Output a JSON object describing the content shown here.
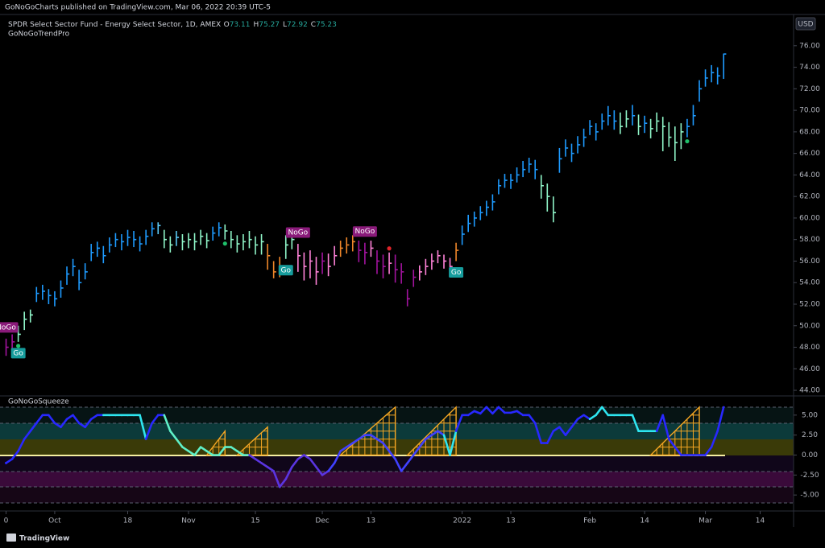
{
  "header": {
    "text": "GoNoGoCharts published on TradingView.com, Mar 06, 2022 20:39 UTC-5",
    "brand": "TradingView"
  },
  "chart_data": [
    {
      "type": "ohlc",
      "title": "SPDR Select Sector Fund - Energy Select Sector, 1D, AMEX",
      "indicator": "GoNoGoTrendPro",
      "currency": "USD",
      "ohlc_legend": [
        {
          "label": "O",
          "value": 73.11
        },
        {
          "label": "H",
          "value": 75.27
        },
        {
          "label": "L",
          "value": 72.92
        },
        {
          "label": "C",
          "value": 75.23
        }
      ],
      "xlim": [
        -1,
        129.5
      ],
      "xticks": [
        {
          "value": 0,
          "label": "0"
        },
        {
          "value": 8,
          "label": "Oct"
        },
        {
          "value": 20,
          "label": "18"
        },
        {
          "value": 30,
          "label": "Nov"
        },
        {
          "value": 41,
          "label": "15"
        },
        {
          "value": 52,
          "label": "Dec"
        },
        {
          "value": 60,
          "label": "13"
        },
        {
          "value": 75,
          "label": "2022"
        },
        {
          "value": 83,
          "label": "13"
        },
        {
          "value": 96,
          "label": "Feb"
        },
        {
          "value": 105,
          "label": "14"
        },
        {
          "value": 115,
          "label": "Mar"
        },
        {
          "value": 124,
          "label": "14"
        }
      ],
      "ylim": [
        43.63,
        78.9
      ],
      "yticks": [
        {
          "value": 44,
          "label": "44.00"
        },
        {
          "value": 46,
          "label": "46.00"
        },
        {
          "value": 48,
          "label": "48.00"
        },
        {
          "value": 50,
          "label": "50.00"
        },
        {
          "value": 52,
          "label": "52.00"
        },
        {
          "value": 54,
          "label": "54.00"
        },
        {
          "value": 56,
          "label": "56.00"
        },
        {
          "value": 58,
          "label": "58.00"
        },
        {
          "value": 60,
          "label": "60.00"
        },
        {
          "value": 62,
          "label": "62.00"
        },
        {
          "value": 64,
          "label": "64.00"
        },
        {
          "value": 66,
          "label": "66.00"
        },
        {
          "value": 68,
          "label": "68.00"
        },
        {
          "value": 70,
          "label": "70.00"
        },
        {
          "value": 72,
          "label": "72.00"
        },
        {
          "value": 74,
          "label": "74.00"
        },
        {
          "value": 76,
          "label": "76.00"
        }
      ],
      "close": [
        48.0,
        48.5,
        49.2,
        50.6,
        51.0,
        53.0,
        53.2,
        52.8,
        52.5,
        53.5,
        54.8,
        55.5,
        54.0,
        55.0,
        56.8,
        57.2,
        56.5,
        57.5,
        58.0,
        57.8,
        58.2,
        58.0,
        57.6,
        58.3,
        59.0,
        59.3,
        58.0,
        57.5,
        58.2,
        57.8,
        58.0,
        57.8,
        58.3,
        57.9,
        58.6,
        59.1,
        58.8,
        58.0,
        57.6,
        57.8,
        58.0,
        57.5,
        57.8,
        56.5,
        55.0,
        55.3,
        57.5,
        58.0,
        56.5,
        55.5,
        56.0,
        55.0,
        56.0,
        55.5,
        56.5,
        57.2,
        57.5,
        57.8,
        57.0,
        56.8,
        57.2,
        56.0,
        55.5,
        55.8,
        55.2,
        55.0,
        52.5,
        54.5,
        55.0,
        55.5,
        56.0,
        56.5,
        56.0,
        55.5,
        57.0,
        58.5,
        59.5,
        60.0,
        60.5,
        61.0,
        61.5,
        63.0,
        63.5,
        63.5,
        64.0,
        64.5,
        65.0,
        64.5,
        63.0,
        62.0,
        60.5,
        65.5,
        66.5,
        66.0,
        66.8,
        67.5,
        68.5,
        68.0,
        69.0,
        69.5,
        69.0,
        68.5,
        69.2,
        69.5,
        68.5,
        68.8,
        68.3,
        69.0,
        68.5,
        67.5,
        67.0,
        68.0,
        68.5,
        69.5,
        72.0,
        73.0,
        73.5,
        73.2,
        75.23
      ],
      "high": [
        48.8,
        49.2,
        50.0,
        51.3,
        51.5,
        53.6,
        53.8,
        53.4,
        53.2,
        54.2,
        55.5,
        56.2,
        55.2,
        55.8,
        57.6,
        57.8,
        57.4,
        58.2,
        58.6,
        58.5,
        58.9,
        58.8,
        58.3,
        58.9,
        59.6,
        59.6,
        58.9,
        58.3,
        58.8,
        58.5,
        58.6,
        58.6,
        58.9,
        58.6,
        59.2,
        59.6,
        59.4,
        58.8,
        58.4,
        58.5,
        58.8,
        58.3,
        58.5,
        57.6,
        56.0,
        56.4,
        58.4,
        58.4,
        57.6,
        56.8,
        57.0,
        56.4,
        56.8,
        56.7,
        57.4,
        57.9,
        58.2,
        58.4,
        57.9,
        57.7,
        57.9,
        57.0,
        56.6,
        56.8,
        56.6,
        55.8,
        53.4,
        55.2,
        55.6,
        56.2,
        56.7,
        57.0,
        56.6,
        56.3,
        57.7,
        59.3,
        60.3,
        60.6,
        61.1,
        61.6,
        62.2,
        63.6,
        64.1,
        64.1,
        64.7,
        65.3,
        65.6,
        65.4,
        64.0,
        63.2,
        62.0,
        66.5,
        67.3,
        66.9,
        67.6,
        68.3,
        69.1,
        68.8,
        69.7,
        70.4,
        70.0,
        69.8,
        70.0,
        70.5,
        69.6,
        69.5,
        69.2,
        69.8,
        69.4,
        68.9,
        68.5,
        68.8,
        69.2,
        70.5,
        72.8,
        73.8,
        74.2,
        74.0,
        75.27
      ],
      "low": [
        47.2,
        47.8,
        48.5,
        49.6,
        50.3,
        52.2,
        52.4,
        52.0,
        51.8,
        52.6,
        53.8,
        54.6,
        53.3,
        54.3,
        56.0,
        56.4,
        55.8,
        56.8,
        57.3,
        57.0,
        57.4,
        57.3,
        56.9,
        57.5,
        58.3,
        58.5,
        57.2,
        56.8,
        57.4,
        57.0,
        57.2,
        57.0,
        57.5,
        57.2,
        57.9,
        58.3,
        58.0,
        57.2,
        56.8,
        57.0,
        57.2,
        56.6,
        56.6,
        55.2,
        54.4,
        54.5,
        56.2,
        57.1,
        55.0,
        54.2,
        54.4,
        53.8,
        54.8,
        54.6,
        55.6,
        56.4,
        56.7,
        56.9,
        55.9,
        55.7,
        56.4,
        54.8,
        54.4,
        54.8,
        54.0,
        53.9,
        51.8,
        53.6,
        54.2,
        54.7,
        55.2,
        55.8,
        55.3,
        54.8,
        56.0,
        57.5,
        58.7,
        59.2,
        59.8,
        60.2,
        60.7,
        62.2,
        62.8,
        62.7,
        63.3,
        63.8,
        64.2,
        63.6,
        61.8,
        60.6,
        59.6,
        64.2,
        65.7,
        65.2,
        66.0,
        66.6,
        67.7,
        67.2,
        68.2,
        68.6,
        68.2,
        67.8,
        68.4,
        68.6,
        67.7,
        67.9,
        67.4,
        68.0,
        66.2,
        66.6,
        65.3,
        66.4,
        67.5,
        68.6,
        70.8,
        72.2,
        72.6,
        72.4,
        72.92
      ],
      "colors": [
        "#a3139f",
        "#a3139f",
        "#8ff5c8",
        "#8ff5c8",
        "#8ff5c8",
        "#1e9bff",
        "#1e9bff",
        "#1e9bff",
        "#1e9bff",
        "#1e9bff",
        "#1e9bff",
        "#1e9bff",
        "#1e9bff",
        "#1e9bff",
        "#1e9bff",
        "#1e9bff",
        "#1e9bff",
        "#1e9bff",
        "#1e9bff",
        "#1e9bff",
        "#1e9bff",
        "#1e9bff",
        "#1e9bff",
        "#1e9bff",
        "#1e9bff",
        "#5bc8f5",
        "#8ff5c8",
        "#8ff5c8",
        "#5bc8f5",
        "#8ff5c8",
        "#8ff5c8",
        "#8ff5c8",
        "#8ff5c8",
        "#8ff5c8",
        "#1e9bff",
        "#1e9bff",
        "#8ff5c8",
        "#8ff5c8",
        "#8ff5c8",
        "#8ff5c8",
        "#8ff5c8",
        "#8ff5c8",
        "#8ff5c8",
        "#f0872a",
        "#f0872a",
        "#f0872a",
        "#8ff5c8",
        "#8ff5c8",
        "#ff82d8",
        "#ff82d8",
        "#ff82d8",
        "#ff82d8",
        "#a3139f",
        "#ff82d8",
        "#ff82d8",
        "#f0872a",
        "#f0872a",
        "#f0872a",
        "#a3139f",
        "#a3139f",
        "#ff82d8",
        "#a3139f",
        "#a3139f",
        "#ff82d8",
        "#a3139f",
        "#a3139f",
        "#a3139f",
        "#a3139f",
        "#ff82d8",
        "#ff82d8",
        "#ff82d8",
        "#ff82d8",
        "#ff82d8",
        "#ff82d8",
        "#f0872a",
        "#1e9bff",
        "#1e9bff",
        "#1e9bff",
        "#1e9bff",
        "#1e9bff",
        "#1e9bff",
        "#1e9bff",
        "#1e9bff",
        "#1e9bff",
        "#1e9bff",
        "#1e9bff",
        "#1e9bff",
        "#1e9bff",
        "#8ff5c8",
        "#8ff5c8",
        "#8ff5c8",
        "#1e9bff",
        "#1e9bff",
        "#1e9bff",
        "#1e9bff",
        "#1e9bff",
        "#1e9bff",
        "#1e9bff",
        "#1e9bff",
        "#1e9bff",
        "#1e9bff",
        "#8ff5c8",
        "#8ff5c8",
        "#1e9bff",
        "#8ff5c8",
        "#1e9bff",
        "#8ff5c8",
        "#8ff5c8",
        "#8ff5c8",
        "#8ff5c8",
        "#8ff5c8",
        "#8ff5c8",
        "#1e9bff",
        "#1e9bff",
        "#1e9bff",
        "#1e9bff",
        "#1e9bff",
        "#1e9bff",
        "#1e9bff"
      ],
      "annotations": [
        {
          "text": "NoGo",
          "bar": 0,
          "side": "above",
          "color": "#8a1a7a"
        },
        {
          "text": "Go",
          "bar": 2,
          "side": "below",
          "color": "#169c9c"
        },
        {
          "text": "Go",
          "bar": 46,
          "side": "below",
          "color": "#169c9c"
        },
        {
          "text": "NoGo",
          "bar": 48,
          "side": "above",
          "color": "#8a1a7a"
        },
        {
          "text": "NoGo",
          "bar": 59,
          "side": "above",
          "color": "#8a1a7a"
        },
        {
          "text": "Go",
          "bar": 74,
          "side": "below",
          "color": "#169c9c"
        }
      ],
      "signals": [
        {
          "bar": 2,
          "side": "below",
          "color": "#1fbf6a"
        },
        {
          "bar": 36,
          "side": "below",
          "color": "#1fbf6a"
        },
        {
          "bar": 63,
          "side": "above",
          "color": "#e0242a"
        },
        {
          "bar": 112,
          "side": "below",
          "color": "#1fbf6a"
        }
      ]
    },
    {
      "type": "line",
      "title": "GoNoGoSqueeze",
      "ylim": [
        -7.0,
        7.1
      ],
      "yticks": [
        {
          "value": 5,
          "label": "5.00"
        },
        {
          "value": 2.5,
          "label": "2.50"
        },
        {
          "value": 0,
          "label": "0.00"
        },
        {
          "value": -2.5,
          "label": "-2.50"
        },
        {
          "value": -5,
          "label": "-5.00"
        }
      ],
      "values": [
        -1,
        -0.5,
        0.5,
        2,
        3,
        4,
        5,
        5,
        4,
        3.5,
        4.5,
        5,
        4,
        3.5,
        4.5,
        5,
        5,
        5,
        5,
        5,
        5,
        5,
        5,
        2,
        4,
        5,
        5,
        3,
        2,
        1,
        0.5,
        0,
        1,
        0.5,
        0,
        0,
        1,
        1,
        0.5,
        0,
        0,
        -0.5,
        -1,
        -1.5,
        -2,
        -4,
        -3,
        -1.5,
        -0.5,
        0,
        -0.5,
        -1.5,
        -2.5,
        -2,
        -1,
        0.5,
        1,
        1.5,
        2,
        2.5,
        2.5,
        2,
        1.5,
        0.5,
        -0.5,
        -2,
        -1,
        0,
        1,
        2,
        2.5,
        3,
        2.5,
        0,
        3,
        5,
        5,
        5.5,
        5.2,
        6,
        5.2,
        6,
        5.3,
        5.3,
        5.5,
        5,
        5,
        4,
        1.5,
        1.5,
        3,
        3.5,
        2.5,
        3.5,
        4.5,
        5,
        4.5,
        5,
        6,
        5,
        5,
        5,
        5,
        5,
        3,
        3,
        3,
        3,
        5,
        2,
        1,
        0,
        0,
        0,
        0,
        0,
        1,
        3,
        6
      ],
      "colors": [
        "#2828ff",
        "#2828ff",
        "#2828ff",
        "#2828ff",
        "#2828ff",
        "#2828ff",
        "#2828ff",
        "#2828ff",
        "#2828ff",
        "#2828ff",
        "#2828ff",
        "#2828ff",
        "#2828ff",
        "#2828ff",
        "#2828ff",
        "#2828ff",
        "#2828ff",
        "#2ee6f0",
        "#2ee6f0",
        "#2ee6f0",
        "#2ee6f0",
        "#2ee6f0",
        "#2ee6f0",
        "#2ee6f0",
        "#2828ff",
        "#2828ff",
        "#2828ff",
        "#5ff0c8",
        "#5ff0c8",
        "#5ff0c8",
        "#5ff0c8",
        "#5ff0c8",
        "#5ff0c8",
        "#5ff0c8",
        "#5ff0c8",
        "#5ff0c8",
        "#5ff0c8",
        "#5ff0c8",
        "#5ff0c8",
        "#5ff0c8",
        "#5ff0c8",
        "#5a35e0",
        "#5a35e0",
        "#5a35e0",
        "#5a35e0",
        "#5a35e0",
        "#5a35e0",
        "#5a35e0",
        "#5a35e0",
        "#5a35e0",
        "#5a35e0",
        "#5a35e0",
        "#5a35e0",
        "#5a35e0",
        "#4040ff",
        "#4040ff",
        "#4040ff",
        "#4040ff",
        "#4040ff",
        "#4040ff",
        "#4040ff",
        "#4040ff",
        "#4040ff",
        "#4040ff",
        "#4040ff",
        "#4040ff",
        "#4040ff",
        "#4040ff",
        "#4040ff",
        "#4040ff",
        "#4040ff",
        "#4040ff",
        "#4040ff",
        "#2ee6f0",
        "#2ee6f0",
        "#2828ff",
        "#2828ff",
        "#2828ff",
        "#2828ff",
        "#2828ff",
        "#2828ff",
        "#2828ff",
        "#2828ff",
        "#2828ff",
        "#2828ff",
        "#2828ff",
        "#2828ff",
        "#2828ff",
        "#2828ff",
        "#2828ff",
        "#2828ff",
        "#2828ff",
        "#2828ff",
        "#2828ff",
        "#2828ff",
        "#2828ff",
        "#2828ff",
        "#2ee6f0",
        "#2ee6f0",
        "#2ee6f0",
        "#2ee6f0",
        "#2ee6f0",
        "#2ee6f0",
        "#2ee6f0",
        "#2ee6f0",
        "#2ee6f0",
        "#2ee6f0",
        "#2ee6f0",
        "#2828ff",
        "#2828ff",
        "#2828ff",
        "#2828ff",
        "#2828ff",
        "#2828ff",
        "#2828ff",
        "#2828ff",
        "#2828ff",
        "#2828ff",
        "#2828ff"
      ],
      "squeezes": [
        {
          "start": 33,
          "end": 36,
          "peak": 3
        },
        {
          "start": 38,
          "end": 43,
          "peak": 3.5
        },
        {
          "start": 55,
          "end": 64,
          "peak": 6
        },
        {
          "start": 66,
          "end": 74,
          "peak": 6
        },
        {
          "start": 106,
          "end": 114,
          "peak": 6
        }
      ],
      "squeeze_color": "#f5a623"
    }
  ]
}
